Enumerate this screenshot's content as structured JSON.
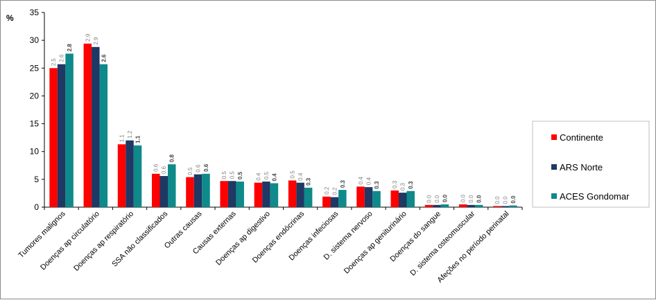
{
  "chart_data": {
    "type": "bar",
    "unit_label": "%",
    "ylim": [
      0,
      35
    ],
    "yticks": [
      0,
      5,
      10,
      15,
      20,
      25,
      30,
      35
    ],
    "grid": false,
    "legend_position": "right",
    "categories": [
      "Tumores malignos",
      "Doenças ap circulatório",
      "Doenças ap respiratório",
      "SSA não classificados",
      "Outras causas",
      "Causas externas",
      "Doenças ap digestivo",
      "Doenças endócrinas",
      "Doenças infeciosas",
      "D. sistema nervoso",
      "Doenças ap geniturinário",
      "Doenças do sangue",
      "D. sistema osteomuscular",
      "Afeções no período perinatal"
    ],
    "series": [
      {
        "name": "Continente",
        "color": "#ff0000",
        "values": [
          25.0,
          29.4,
          11.3,
          6.0,
          5.4,
          4.7,
          4.4,
          4.8,
          1.9,
          3.7,
          3.0,
          0.4,
          0.5,
          0.2
        ],
        "data_labels": [
          "2.5",
          "2.9",
          "1.1",
          "0.6",
          "0.5",
          "0.5",
          "0.4",
          "0.5",
          "0.2",
          "0.4",
          "0.3",
          "0.0",
          "0.0",
          "0.0"
        ]
      },
      {
        "name": "ARS Norte",
        "color": "#1f3864",
        "values": [
          25.7,
          28.8,
          12.0,
          5.6,
          5.9,
          4.7,
          4.6,
          4.4,
          1.8,
          3.6,
          2.6,
          0.4,
          0.4,
          0.2
        ],
        "data_labels": [
          "2.6",
          "2.9",
          "1.2",
          "0.6",
          "0.6",
          "0.5",
          "0.5",
          "0.4",
          "0.2",
          "0.4",
          "0.3",
          "0.0",
          "0.0",
          "0.0"
        ]
      },
      {
        "name": "ACES Gondomar",
        "color": "#0e8a8a",
        "values": [
          27.6,
          25.7,
          11.1,
          7.7,
          6.0,
          4.6,
          4.3,
          3.5,
          3.1,
          2.9,
          2.9,
          0.5,
          0.4,
          0.3
        ],
        "data_labels": [
          "2.8",
          "2.6",
          "1.1",
          "0.8",
          "0.6",
          "0.5",
          "0.4",
          "0.3",
          "0.3",
          "0.3",
          "0.3",
          "0.0",
          "0.0",
          "0.0"
        ]
      }
    ]
  }
}
